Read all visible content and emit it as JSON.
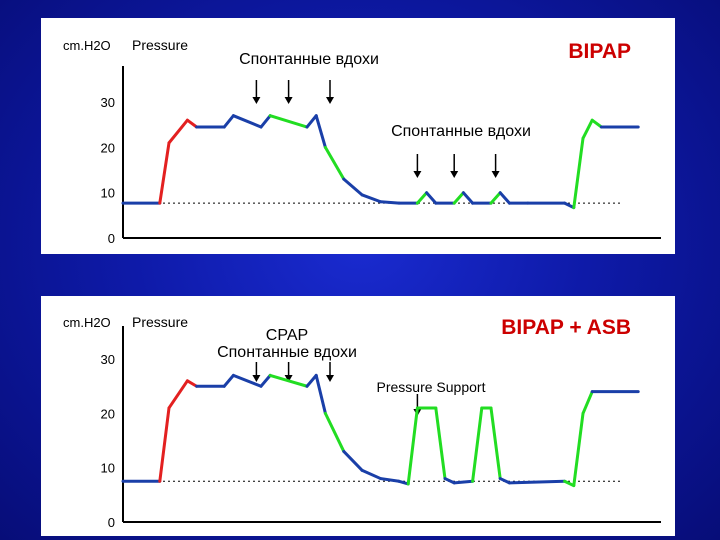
{
  "colors": {
    "background": "#0e1aa8",
    "panel": "#ffffff",
    "trace": "#1a3fa8",
    "triggered_inspiration": "#e32020",
    "spontaneous_breath": "#22dd22",
    "arrow": "#000000",
    "mode_title": "#cc0000",
    "baseline": "#000000"
  },
  "chart_data": [
    {
      "type": "line",
      "title": "BIPAP",
      "ylabel": "cm.H2O",
      "series_label": "Pressure",
      "yticks": [
        0,
        10,
        20,
        30
      ],
      "ylim": [
        0,
        37
      ],
      "grid": false,
      "annotations": [
        {
          "text": "Спонтанные вдохи",
          "arrows_at": [
            14.5,
            18,
            22.5
          ]
        },
        {
          "text": "Спонтанные вдохи",
          "arrows_at": [
            32,
            36,
            40.5
          ]
        }
      ],
      "x": [
        0,
        4,
        5,
        7,
        8,
        11,
        12,
        15,
        16,
        20,
        21,
        22,
        24,
        26,
        28,
        30,
        32,
        33,
        34,
        36,
        37,
        38,
        40,
        41,
        42,
        44,
        48,
        49,
        50,
        51,
        52,
        56
      ],
      "values": [
        7.7,
        7.7,
        21,
        26,
        24.5,
        24.5,
        27,
        24.5,
        27,
        24.5,
        27,
        20,
        13,
        9.5,
        8,
        7.7,
        7.7,
        10,
        7.7,
        7.7,
        10,
        7.7,
        7.7,
        10,
        7.7,
        7.7,
        7.7,
        6.7,
        22,
        26,
        24.5,
        24.5
      ],
      "spontaneous_breaths_at": [
        14.5,
        18,
        22.5,
        32,
        36,
        40.5
      ],
      "triggered_rise": {
        "from": 4,
        "to": 8
      },
      "high_level": 24.5,
      "low_level": 7.7
    },
    {
      "type": "line",
      "title": "BIPAP + ASB",
      "ylabel": "cm.H2O",
      "series_label": "Pressure",
      "yticks": [
        0,
        10,
        20,
        30
      ],
      "ylim": [
        0,
        37
      ],
      "grid": false,
      "annotations": [
        {
          "text": "CPAP\nСпонтанные вдохи",
          "arrows_at": [
            14.5,
            18,
            22.5
          ]
        },
        {
          "text": "Pressure Support",
          "arrows_at": [
            32
          ]
        }
      ],
      "x": [
        0,
        4,
        5,
        7,
        8,
        11,
        12,
        15,
        16,
        20,
        21,
        22,
        24,
        26,
        28,
        30,
        31,
        32,
        34,
        35,
        36,
        38,
        39,
        40,
        41,
        42,
        48,
        49,
        50,
        51,
        56
      ],
      "values": [
        7.5,
        7.5,
        21,
        26,
        25,
        25,
        27,
        25,
        27,
        25,
        27,
        20,
        13,
        9.5,
        8,
        7.5,
        7,
        21,
        21,
        8,
        7.2,
        7.5,
        21,
        21,
        8,
        7.2,
        7.5,
        6.7,
        20,
        24,
        24
      ],
      "pressure_support_breaths": [
        {
          "start": 31,
          "end": 35
        },
        {
          "start": 38,
          "end": 41
        }
      ],
      "spontaneous_breaths_at": [
        14.5,
        18,
        22.5
      ],
      "triggered_rise": {
        "from": 4,
        "to": 8
      },
      "high_level": 25,
      "low_level": 7.5
    }
  ]
}
